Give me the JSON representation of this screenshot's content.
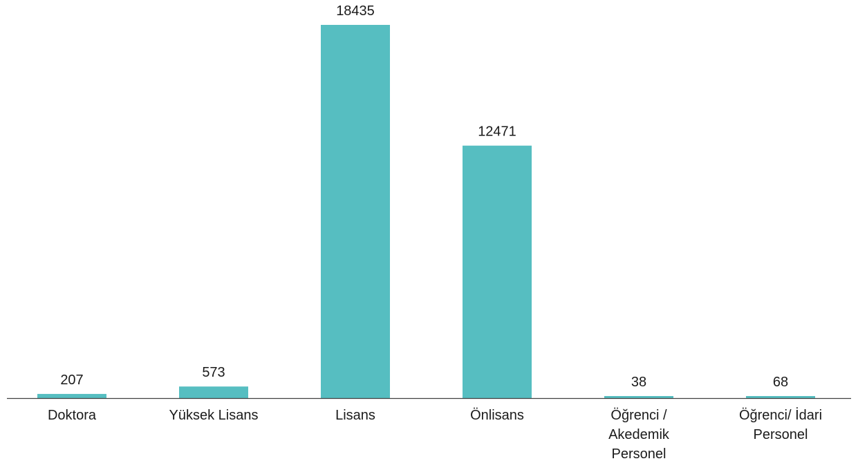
{
  "chart_data": {
    "type": "bar",
    "title": "",
    "xlabel": "",
    "ylabel": "",
    "categories": [
      "Doktora",
      "Yüksek Lisans",
      "Lisans",
      "Önlisans",
      "Öğrenci / Akedemik Personel",
      "Öğrenci/ İdari Personel"
    ],
    "category_lines": [
      [
        "Doktora"
      ],
      [
        "Yüksek Lisans"
      ],
      [
        "Lisans"
      ],
      [
        "Önlisans"
      ],
      [
        "Öğrenci /",
        "Akedemik",
        "Personel"
      ],
      [
        "Öğrenci/ İdari",
        "Personel"
      ]
    ],
    "values": [
      207,
      573,
      18435,
      12471,
      38,
      68
    ],
    "data_labels": [
      "207",
      "573",
      "18435",
      "12471",
      "38",
      "68"
    ],
    "ylim": [
      0,
      18435
    ],
    "grid": false,
    "legend": "none",
    "colors": {
      "bar": "#56bec1",
      "axis": "#404040",
      "text": "#1a1a1a"
    }
  }
}
